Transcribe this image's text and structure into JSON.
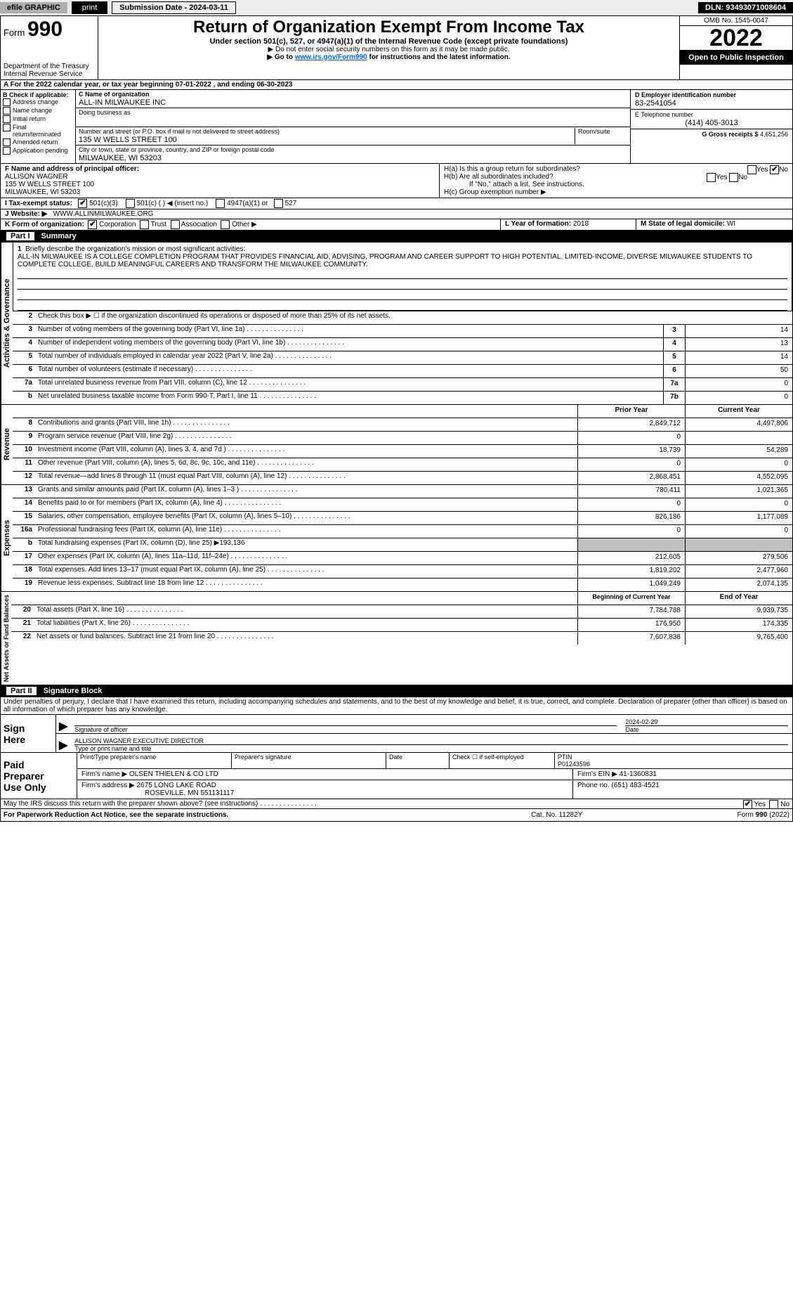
{
  "topbar": {
    "efile": "efile GRAPHIC",
    "print": "print",
    "submission": "Submission Date - 2024-03-11",
    "dln": "DLN: 93493071008604"
  },
  "header": {
    "form_label": "Form",
    "form_num": "990",
    "dept": "Department of the Treasury",
    "irs": "Internal Revenue Service",
    "title": "Return of Organization Exempt From Income Tax",
    "subtitle": "Under section 501(c), 527, or 4947(a)(1) of the Internal Revenue Code (except private foundations)",
    "ssn_note": "▶ Do not enter social security numbers on this form as it may be made public.",
    "goto_pre": "▶ Go to ",
    "goto_link": "www.irs.gov/Form990",
    "goto_post": " for instructions and the latest information.",
    "omb": "OMB No. 1545-0047",
    "year": "2022",
    "public": "Open to Public Inspection"
  },
  "lineA": "A  For the 2022 calendar year, or tax year beginning 07-01-2022    , and ending 06-30-2023",
  "B": {
    "head": "B Check if applicable:",
    "opts": [
      "Address change",
      "Name change",
      "Initial return",
      "Final return/terminated",
      "Amended return",
      "Application pending"
    ]
  },
  "C": {
    "name_label": "C Name of organization",
    "name": "ALL-IN MILWAUKEE INC",
    "dba_label": "Doing business as",
    "addr_label": "Number and street (or P.O. box if mail is not delivered to street address)",
    "room_label": "Room/suite",
    "addr": "135 W WELLS STREET 100",
    "city_label": "City or town, state or province, country, and ZIP or foreign postal code",
    "city": "MILWAUKEE, WI  53203"
  },
  "D": {
    "label": "D Employer identification number",
    "value": "83-2541054"
  },
  "E": {
    "label": "E Telephone number",
    "value": "(414) 405-3013"
  },
  "G": {
    "label": "G Gross receipts $",
    "value": "4,651,256"
  },
  "F": {
    "label": "F  Name and address of principal officer:",
    "name": "ALLISON WAGNER",
    "addr1": "135 W WELLS STREET 100",
    "addr2": "MILWAUKEE, WI  53203"
  },
  "H": {
    "a": "H(a)  Is this a group return for subordinates?",
    "b": "H(b)  Are all subordinates included?",
    "b_note": "If \"No,\" attach a list. See instructions.",
    "c": "H(c)  Group exemption number ▶"
  },
  "I": {
    "label": "I     Tax-exempt status:",
    "o1": "501(c)(3)",
    "o2": "501(c) (   ) ◀ (insert no.)",
    "o3": "4947(a)(1) or",
    "o4": "527"
  },
  "J": {
    "label": "J     Website: ▶",
    "value": "WWW.ALLINMILWAUKEE.ORG"
  },
  "K": {
    "label": "K Form of organization:",
    "opts": [
      "Corporation",
      "Trust",
      "Association",
      "Other ▶"
    ]
  },
  "L": {
    "label": "L Year of formation:",
    "value": "2018"
  },
  "M": {
    "label": "M State of legal domicile:",
    "value": "WI"
  },
  "partI": {
    "part": "Part I",
    "title": "Summary"
  },
  "mission": {
    "num": "1",
    "label": "Briefly describe the organization's mission or most significant activities:",
    "text": "ALL-IN MILWAUKEE IS A COLLEGE COMPLETION PROGRAM THAT PROVIDES FINANCIAL AID, ADVISING, PROGRAM AND CAREER SUPPORT TO HIGH POTENTIAL, LIMITED-INCOME, DIVERSE MILWAUKEE STUDENTS TO COMPLETE COLLEGE, BUILD MEANINGFUL CAREERS AND TRANSFORM THE MILWAUKEE COMMUNITY."
  },
  "gov": {
    "label": "Activities & Governance",
    "r2": "Check this box ▶ ☐  if the organization discontinued its operations or disposed of more than 25% of its net assets.",
    "rows": [
      {
        "n": "3",
        "d": "Number of voting members of the governing body (Part VI, line 1a)",
        "id": "3",
        "v": "14"
      },
      {
        "n": "4",
        "d": "Number of independent voting members of the governing body (Part VI, line 1b)",
        "id": "4",
        "v": "13"
      },
      {
        "n": "5",
        "d": "Total number of individuals employed in calendar year 2022 (Part V, line 2a)",
        "id": "5",
        "v": "14"
      },
      {
        "n": "6",
        "d": "Total number of volunteers (estimate if necessary)",
        "id": "6",
        "v": "50"
      },
      {
        "n": "7a",
        "d": "Total unrelated business revenue from Part VIII, column (C), line 12",
        "id": "7a",
        "v": "0"
      },
      {
        "n": "b",
        "d": "Net unrelated business taxable income from Form 990-T, Part I, line 11",
        "id": "7b",
        "v": "0"
      }
    ]
  },
  "rev": {
    "label": "Revenue",
    "head_prior": "Prior Year",
    "head_curr": "Current Year",
    "rows": [
      {
        "n": "8",
        "d": "Contributions and grants (Part VIII, line 1h)",
        "p": "2,849,712",
        "c": "4,497,806"
      },
      {
        "n": "9",
        "d": "Program service revenue (Part VIII, line 2g)",
        "p": "0",
        "c": ""
      },
      {
        "n": "10",
        "d": "Investment income (Part VIII, column (A), lines 3, 4, and 7d )",
        "p": "18,739",
        "c": "54,289"
      },
      {
        "n": "11",
        "d": "Other revenue (Part VIII, column (A), lines 5, 6d, 8c, 9c, 10c, and 11e)",
        "p": "0",
        "c": "0"
      },
      {
        "n": "12",
        "d": "Total revenue—add lines 8 through 11 (must equal Part VIII, column (A), line 12)",
        "p": "2,868,451",
        "c": "4,552,095"
      }
    ]
  },
  "exp": {
    "label": "Expenses",
    "rows": [
      {
        "n": "13",
        "d": "Grants and similar amounts paid (Part IX, column (A), lines 1–3 )",
        "p": "780,411",
        "c": "1,021,365"
      },
      {
        "n": "14",
        "d": "Benefits paid to or for members (Part IX, column (A), line 4)",
        "p": "0",
        "c": "0"
      },
      {
        "n": "15",
        "d": "Salaries, other compensation, employee benefits (Part IX, column (A), lines 5–10)",
        "p": "826,186",
        "c": "1,177,089"
      },
      {
        "n": "16a",
        "d": "Professional fundraising fees (Part IX, column (A), line 11e)",
        "p": "0",
        "c": "0"
      },
      {
        "n": "b",
        "d": "Total fundraising expenses (Part IX, column (D), line 25) ▶193,136",
        "shade": true
      },
      {
        "n": "17",
        "d": "Other expenses (Part IX, column (A), lines 11a–11d, 11f–24e)",
        "p": "212,605",
        "c": "279,506"
      },
      {
        "n": "18",
        "d": "Total expenses. Add lines 13–17 (must equal Part IX, column (A), line 25)",
        "p": "1,819,202",
        "c": "2,477,960"
      },
      {
        "n": "19",
        "d": "Revenue less expenses. Subtract line 18 from line 12",
        "p": "1,049,249",
        "c": "2,074,135"
      }
    ]
  },
  "net": {
    "label": "Net Assets or Fund Balances",
    "head_prior": "Beginning of Current Year",
    "head_curr": "End of Year",
    "rows": [
      {
        "n": "20",
        "d": "Total assets (Part X, line 16)",
        "p": "7,784,788",
        "c": "9,939,735"
      },
      {
        "n": "21",
        "d": "Total liabilities (Part X, line 26)",
        "p": "176,950",
        "c": "174,335"
      },
      {
        "n": "22",
        "d": "Net assets or fund balances. Subtract line 21 from line 20",
        "p": "7,607,838",
        "c": "9,765,400"
      }
    ]
  },
  "partII": {
    "part": "Part II",
    "title": "Signature Block"
  },
  "penalty": "Under penalties of perjury, I declare that I have examined this return, including accompanying schedules and statements, and to the best of my knowledge and belief, it is true, correct, and complete. Declaration of preparer (other than officer) is based on all information of which preparer has any knowledge.",
  "sign": {
    "label1": "Sign",
    "label2": "Here",
    "sig_of_officer": "Signature of officer",
    "date_label": "Date",
    "date": "2024-02-29",
    "officer_name": "ALLISON WAGNER  EXECUTIVE DIRECTOR",
    "type_label": "Type or print name and title"
  },
  "paid": {
    "label1": "Paid",
    "label2": "Preparer",
    "label3": "Use Only",
    "h1": "Print/Type preparer's name",
    "h2": "Preparer's signature",
    "h3": "Date",
    "h4_pre": "Check ☐ if self-employed",
    "h5": "PTIN",
    "ptin": "P01243596",
    "firm_name_label": "Firm's name    ▶",
    "firm_name": "OLSEN THIELEN & CO LTD",
    "firm_ein_label": "Firm's EIN ▶",
    "firm_ein": "41-1360831",
    "firm_addr_label": "Firm's address ▶",
    "firm_addr1": "2675 LONG LAKE ROAD",
    "firm_addr2": "ROSEVILLE, MN  551131117",
    "phone_label": "Phone no.",
    "phone": "(651) 483-4521"
  },
  "discuss": "May the IRS discuss this return with the preparer shown above? (see instructions)",
  "footer": {
    "left": "For Paperwork Reduction Act Notice, see the separate instructions.",
    "mid": "Cat. No. 11282Y",
    "right": "Form 990 (2022)"
  },
  "colors": {
    "black": "#000000",
    "white": "#ffffff",
    "gray_bg": "#ededed",
    "gray_btn": "#b0b0b0",
    "link": "#0066cc",
    "shade": "#c0c0c0"
  }
}
